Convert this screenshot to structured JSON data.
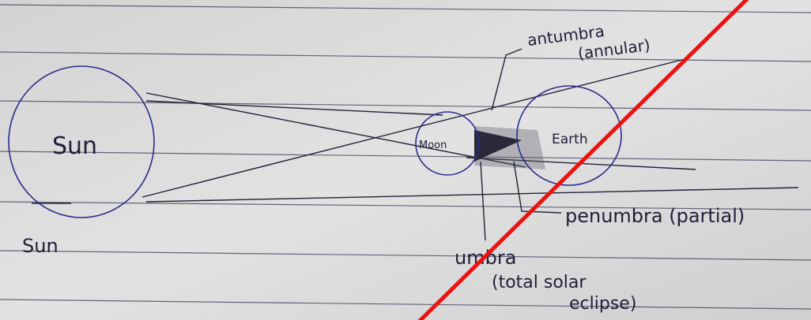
{
  "nodes": [
    {
      "label": "Sun"
    },
    {
      "label": "Moon"
    },
    {
      "label": "Earth"
    }
  ],
  "annotations": {
    "antumbra": [
      "antumbra",
      "(annular)"
    ],
    "penumbra": "penumbra (partial)",
    "umbra": [
      "umbra",
      "(total solar",
      "eclipse)"
    ],
    "caption": "Sun"
  }
}
